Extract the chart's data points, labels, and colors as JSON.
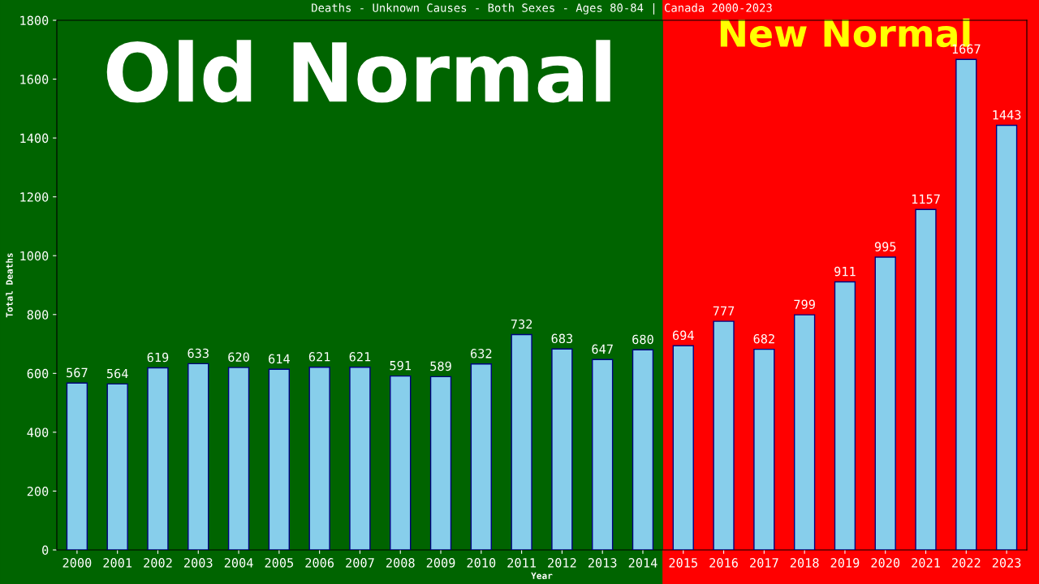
{
  "chart_data": {
    "type": "bar",
    "title": "Deaths - Unknown Causes - Both Sexes - Ages 80-84 | Canada 2000-2023",
    "xlabel": "Year",
    "ylabel": "Total Deaths",
    "categories": [
      "2000",
      "2001",
      "2002",
      "2003",
      "2004",
      "2005",
      "2006",
      "2007",
      "2008",
      "2009",
      "2010",
      "2011",
      "2012",
      "2013",
      "2014",
      "2015",
      "2016",
      "2017",
      "2018",
      "2019",
      "2020",
      "2021",
      "2022",
      "2023"
    ],
    "values": [
      567,
      564,
      619,
      633,
      620,
      614,
      621,
      621,
      591,
      589,
      632,
      732,
      683,
      647,
      680,
      694,
      777,
      682,
      799,
      911,
      995,
      1157,
      1667,
      1443
    ],
    "color": "#87ceeb",
    "data_labels": true,
    "ylim": [
      0,
      1800
    ],
    "yticks": [
      0,
      200,
      400,
      600,
      800,
      1000,
      1200,
      1400,
      1600,
      1800
    ],
    "grid": false,
    "legend": false,
    "bands": [
      {
        "axis": "x",
        "from": "2000",
        "to": "2014",
        "label": "Old Normal",
        "color": "#006400"
      },
      {
        "axis": "x",
        "from": "2015",
        "to": "2023",
        "label": "New Normal",
        "color": "#ff0000"
      }
    ]
  }
}
